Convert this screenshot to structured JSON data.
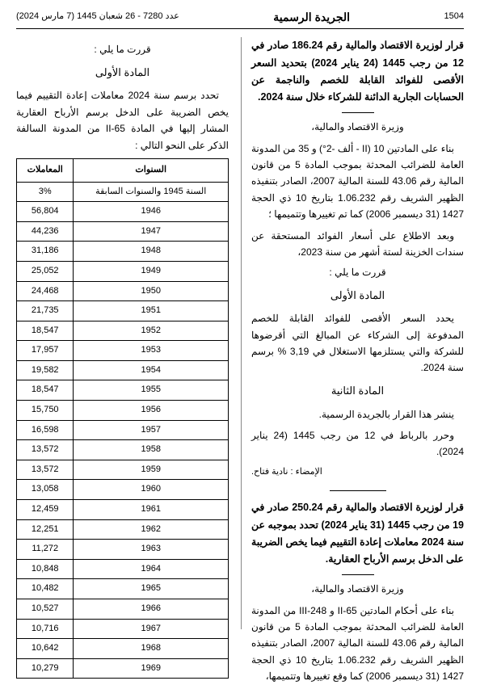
{
  "header": {
    "page_no": "1504",
    "title": "الجريدة الرسمية",
    "issue": "عدد 7280 - 26 شعبان 1445 (7 مارس 2024)"
  },
  "decree1": {
    "title": "قرار لوزيرة الاقتصاد والمالية رقم 186.24 صادر في 12 من رجب 1445 (24 يناير 2024) بتحديد السعر الأقصى للفوائد القابلة للخصم والناجمة عن الحسابات الجارية الدائنة للشركاء خلال سنة 2024.",
    "minister": "وزيرة الاقتصاد والمالية،",
    "p1": "بناء على المادتين 10 (II - ألف -2°) و 35 من المدونة العامة للضرائب المحدثة بموجب المادة 5 من قانون المالية رقم 43.06 للسنة المالية 2007، الصادر بتنفيذه الظهير الشريف رقم 1.06.232 بتاريخ 10 ذي الحجة 1427 (31 ديسمبر 2006) كما تم تغييرها وتتميمها ؛",
    "p2": "وبعد الاطلاع على أسعار الفوائد المستحقة عن سندات الخزينة لستة أشهر من سنة 2023،",
    "decided": "قررت ما يلي :",
    "art1_label": "المادة الأولى",
    "art1_text": "يحدد السعر الأقصى للفوائد القابلة للخصم المدفوعة إلى الشركاء عن المبالغ التي أقرضوها للشركة والتي يستلزمها الاستغلال في 3,19 % برسم سنة 2024.",
    "art2_label": "المادة الثانية",
    "art2_text": "ينشر هذا القرار بالجريدة الرسمية.",
    "place": "وحرر بالرباط في 12 من رجب 1445 (24 يناير 2024).",
    "signature": "الإمضاء : نادية فتاح."
  },
  "decree2": {
    "title": "قرار لوزيرة الاقتصاد والمالية رقم 250.24 صادر في 19 من رجب 1445 (31 يناير 2024) تحدد بموجبه عن سنة 2024 معاملات إعادة التقييم فيما يخص الضريبة على الدخل برسم الأرباح العقارية.",
    "minister": "وزيرة الاقتصاد والمالية،",
    "p1": "بناء على أحكام المادتين II-65 و III-248 من المدونة العامة للضرائب المحدثة بموجب المادة 5 من قانون المالية رقم 43.06 للسنة المالية 2007، الصادر بتنفيذه الظهير الشريف رقم 1.06.232 بتاريخ 10 ذي الحجة 1427 (31 ديسمبر 2006) كما وقع تغييرها وتتميمها،"
  },
  "decree2_left": {
    "decided": "قررت ما يلي :",
    "art1_label": "المادة الأولى",
    "art1_text": "تحدد برسم سنة 2024 معاملات إعادة التقييم فيما يخص الضريبة على الدخل برسم الأرباح العقارية المشار إليها في المادة II-65 من المدونة السالفة الذكر على النحو التالي :"
  },
  "table": {
    "col_years": "السنوات",
    "col_coef": "المعاملات",
    "rows": [
      {
        "y": "السنة 1945 والسنوات السابقة",
        "c": "3%"
      },
      {
        "y": "1946",
        "c": "56,804"
      },
      {
        "y": "1947",
        "c": "44,236"
      },
      {
        "y": "1948",
        "c": "31,186"
      },
      {
        "y": "1949",
        "c": "25,052"
      },
      {
        "y": "1950",
        "c": "24,468"
      },
      {
        "y": "1951",
        "c": "21,735"
      },
      {
        "y": "1952",
        "c": "18,547"
      },
      {
        "y": "1953",
        "c": "17,957"
      },
      {
        "y": "1954",
        "c": "19,582"
      },
      {
        "y": "1955",
        "c": "18,547"
      },
      {
        "y": "1956",
        "c": "15,750"
      },
      {
        "y": "1957",
        "c": "16,598"
      },
      {
        "y": "1958",
        "c": "13,572"
      },
      {
        "y": "1959",
        "c": "13,572"
      },
      {
        "y": "1960",
        "c": "13,058"
      },
      {
        "y": "1961",
        "c": "12,459"
      },
      {
        "y": "1962",
        "c": "12,251"
      },
      {
        "y": "1963",
        "c": "11,272"
      },
      {
        "y": "1964",
        "c": "10,848"
      },
      {
        "y": "1965",
        "c": "10,482"
      },
      {
        "y": "1966",
        "c": "10,527"
      },
      {
        "y": "1967",
        "c": "10,716"
      },
      {
        "y": "1968",
        "c": "10,642"
      },
      {
        "y": "1969",
        "c": "10,279"
      }
    ]
  }
}
